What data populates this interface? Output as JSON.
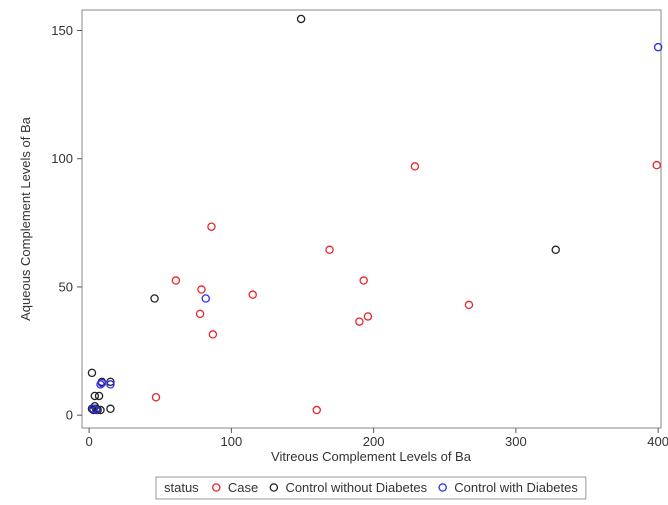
{
  "chart_data": {
    "type": "scatter",
    "xlabel": "Vitreous Complement Levels of Ba",
    "ylabel": "Aqueous Complement Levels of Ba",
    "xlim": [
      -5,
      402
    ],
    "ylim": [
      -5,
      158
    ],
    "xticks": [
      0,
      100,
      200,
      300,
      400
    ],
    "yticks": [
      0,
      50,
      100,
      150
    ],
    "grid": false,
    "legend": {
      "title": "status",
      "placement": "bottom"
    },
    "series": [
      {
        "name": "Case",
        "color": "#e8262a",
        "points": [
          [
            47,
            7
          ],
          [
            61,
            52.5
          ],
          [
            78,
            39.5
          ],
          [
            79,
            49
          ],
          [
            86,
            73.5
          ],
          [
            87,
            31.5
          ],
          [
            115,
            47
          ],
          [
            160,
            2
          ],
          [
            169,
            64.5
          ],
          [
            190,
            36.5
          ],
          [
            193,
            52.5
          ],
          [
            196,
            38.5
          ],
          [
            229,
            97
          ],
          [
            267,
            43
          ],
          [
            399,
            97.5
          ]
        ]
      },
      {
        "name": "Control without Diabetes",
        "color": "#222222",
        "points": [
          [
            2,
            16.5
          ],
          [
            2,
            2.5
          ],
          [
            3,
            2
          ],
          [
            4,
            3.5
          ],
          [
            4,
            7.5
          ],
          [
            5,
            2.5
          ],
          [
            6,
            2
          ],
          [
            7,
            7.5
          ],
          [
            8,
            2
          ],
          [
            9,
            13
          ],
          [
            15,
            13
          ],
          [
            15,
            2.5
          ],
          [
            46,
            45.5
          ],
          [
            149,
            154.5
          ],
          [
            328,
            64.5
          ]
        ]
      },
      {
        "name": "Control with Diabetes",
        "color": "#2f2fe8",
        "points": [
          [
            3,
            2.5
          ],
          [
            5,
            2
          ],
          [
            8,
            12
          ],
          [
            9,
            12.5
          ],
          [
            15,
            12
          ],
          [
            82,
            45.5
          ],
          [
            400,
            143.5
          ]
        ]
      }
    ]
  }
}
